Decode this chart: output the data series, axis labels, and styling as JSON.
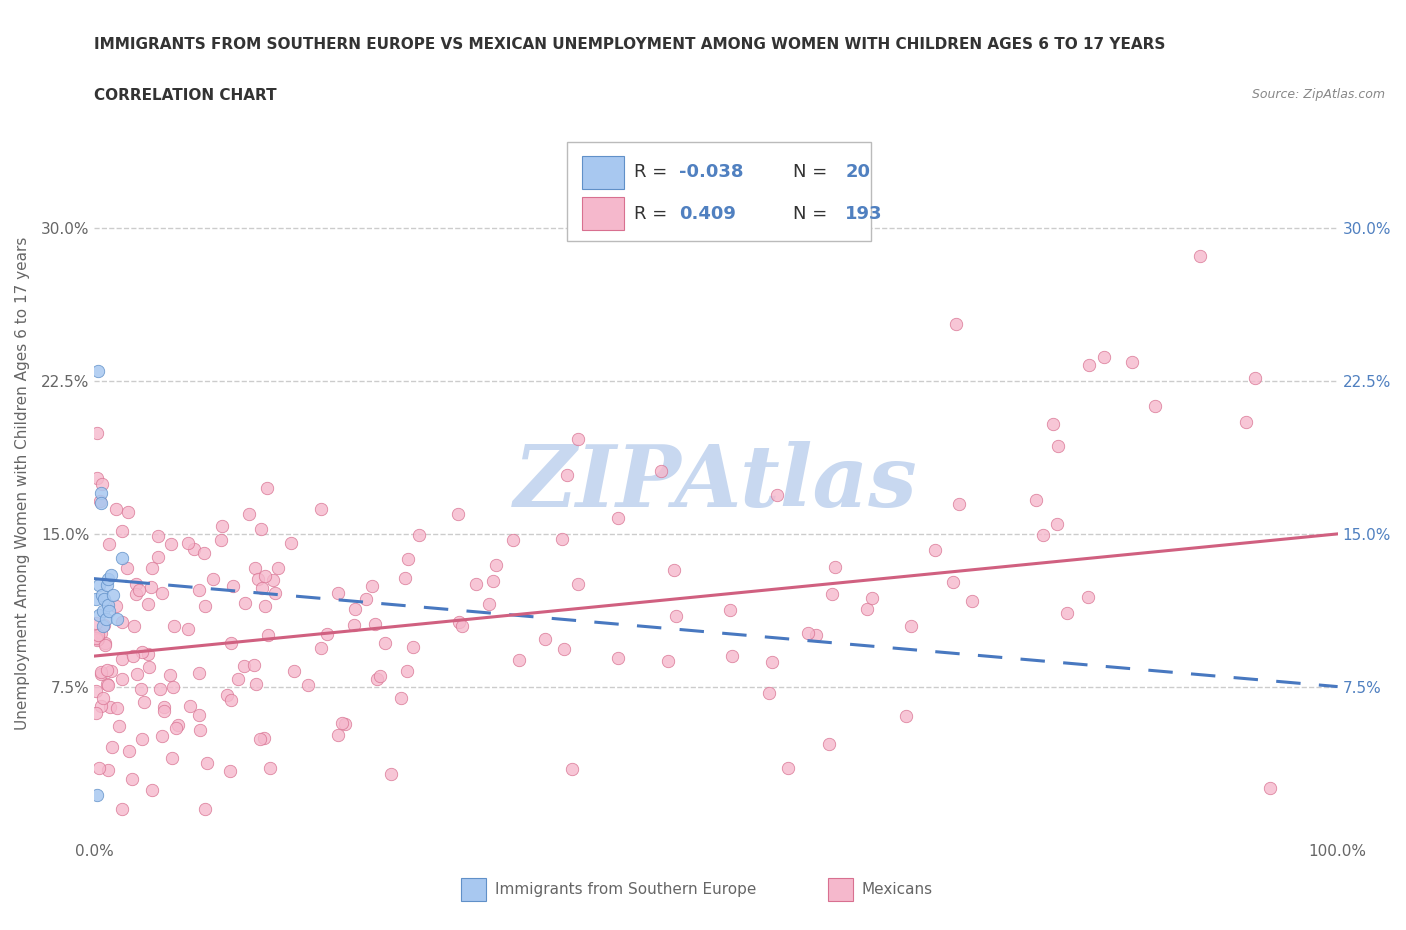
{
  "title": "IMMIGRANTS FROM SOUTHERN EUROPE VS MEXICAN UNEMPLOYMENT AMONG WOMEN WITH CHILDREN AGES 6 TO 17 YEARS",
  "subtitle": "CORRELATION CHART",
  "source": "Source: ZipAtlas.com",
  "ylabel": "Unemployment Among Women with Children Ages 6 to 17 years",
  "xlim": [
    0.0,
    1.0
  ],
  "ylim": [
    0.0,
    0.35
  ],
  "xtick_positions": [
    0.0,
    0.25,
    0.5,
    0.75,
    1.0
  ],
  "xtick_labels": [
    "0.0%",
    "",
    "",
    "",
    "100.0%"
  ],
  "ytick_positions": [
    0.075,
    0.15,
    0.225,
    0.3
  ],
  "ytick_labels": [
    "7.5%",
    "15.0%",
    "22.5%",
    "30.0%"
  ],
  "color_blue_fill": "#a8c8f0",
  "color_blue_edge": "#6090c8",
  "color_pink_fill": "#f5b8cc",
  "color_pink_edge": "#d87090",
  "color_blue_line": "#4878c0",
  "color_pink_line": "#d06080",
  "color_grid": "#cccccc",
  "color_bg": "#ffffff",
  "color_title": "#333333",
  "color_label": "#666666",
  "color_source": "#888888",
  "color_right_tick": "#5080c0",
  "watermark_color": "#c8d8f0",
  "legend_r1": "-0.038",
  "legend_n1": "20",
  "legend_r2": "0.409",
  "legend_n2": "193",
  "blue_seed": 12,
  "pink_seed": 99,
  "title_fontsize": 11,
  "tick_fontsize": 11,
  "label_fontsize": 11,
  "legend_fontsize": 13,
  "marker_size": 80,
  "trend_linewidth": 2.2
}
